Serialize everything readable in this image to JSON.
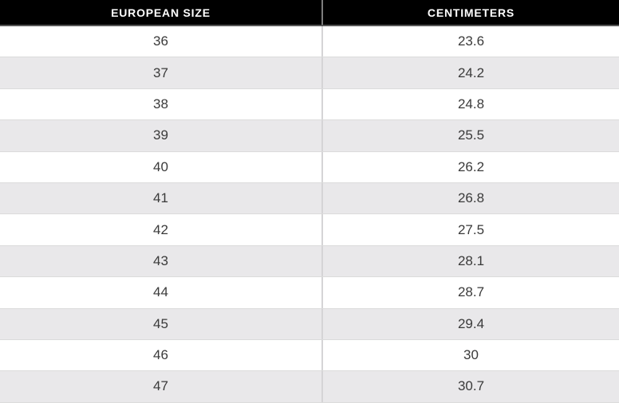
{
  "chart_data": {
    "type": "table",
    "columns": [
      "EUROPEAN SIZE",
      "CENTIMETERS"
    ],
    "rows": [
      [
        "36",
        "23.6"
      ],
      [
        "37",
        "24.2"
      ],
      [
        "38",
        "24.8"
      ],
      [
        "39",
        "25.5"
      ],
      [
        "40",
        "26.2"
      ],
      [
        "41",
        "26.8"
      ],
      [
        "42",
        "27.5"
      ],
      [
        "43",
        "28.1"
      ],
      [
        "44",
        "28.7"
      ],
      [
        "45",
        "29.4"
      ],
      [
        "46",
        "30"
      ],
      [
        "47",
        "30.7"
      ]
    ]
  },
  "colors": {
    "header_bg": "#000000",
    "header_text": "#ffffff",
    "row_bg": "#ffffff",
    "alt_row_bg": "#e9e8ea",
    "cell_text": "#3a3a3a",
    "row_divider": "#dbdbdb",
    "column_divider": "#d5d4d6",
    "header_column_divider": "#7d7d7d",
    "header_underline": "#565656"
  }
}
